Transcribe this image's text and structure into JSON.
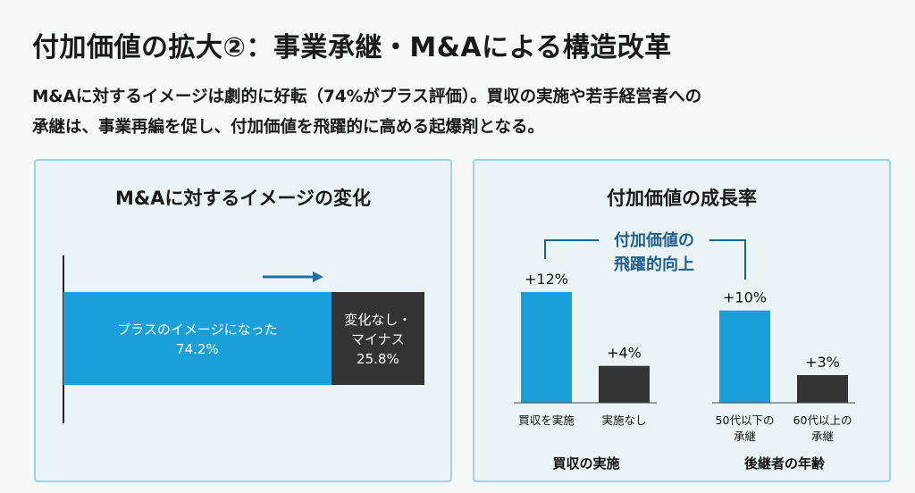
{
  "page": {
    "title": "付加価値の拡大②：事業承継・M&Aによる構造改革",
    "lead_line1": "M&Aに対するイメージは劇的に好転（74%がプラス評価）。買収の実施や若手経営者への",
    "lead_line2": "承継は、事業再編を促し、付加価値を飛躍的に高める起爆剤となる。"
  },
  "chart_data": [
    {
      "type": "bar",
      "orientation": "horizontal-stacked",
      "title": "M&Aに対するイメージの変化",
      "series": [
        {
          "name": "プラスのイメージになった",
          "value": 74.2,
          "label": "74.2%",
          "color": "#1a9fd8",
          "text_lines": [
            "プラスのイメージになった",
            "74.2%"
          ]
        },
        {
          "name": "変化なし・マイナス",
          "value": 25.8,
          "label": "25.8%",
          "color": "#333333",
          "text_lines": [
            "変化なし・",
            "マイナス",
            "25.8%"
          ]
        }
      ],
      "xlim": [
        0,
        100
      ]
    },
    {
      "type": "bar",
      "title": "付加価値の成長率",
      "ylim": [
        0,
        14
      ],
      "annotation": [
        "付加価値の",
        "飛躍的向上"
      ],
      "groups": [
        {
          "label": "買収の実施",
          "bars": [
            {
              "category": "買収を実施",
              "value": 12,
              "label": "+12%",
              "color": "#1a9fd8"
            },
            {
              "category": "実施なし",
              "value": 4,
              "label": "+4%",
              "color": "#333333"
            }
          ]
        },
        {
          "label": "後継者の年齢",
          "bars": [
            {
              "category": "50代以下の承継",
              "category_lines": [
                "50代以下の",
                "承継"
              ],
              "value": 10,
              "label": "+10%",
              "color": "#1a9fd8"
            },
            {
              "category": "60代以上の承継",
              "category_lines": [
                "60代以上の",
                "承継"
              ],
              "value": 3,
              "label": "+3%",
              "color": "#333333"
            }
          ]
        }
      ]
    }
  ],
  "colors": {
    "accent": "#1a9fd8",
    "dark": "#333333",
    "annotation": "#1f5f8b",
    "panel_bg": "#eaf4f7",
    "panel_border": "#9ed3e3"
  }
}
